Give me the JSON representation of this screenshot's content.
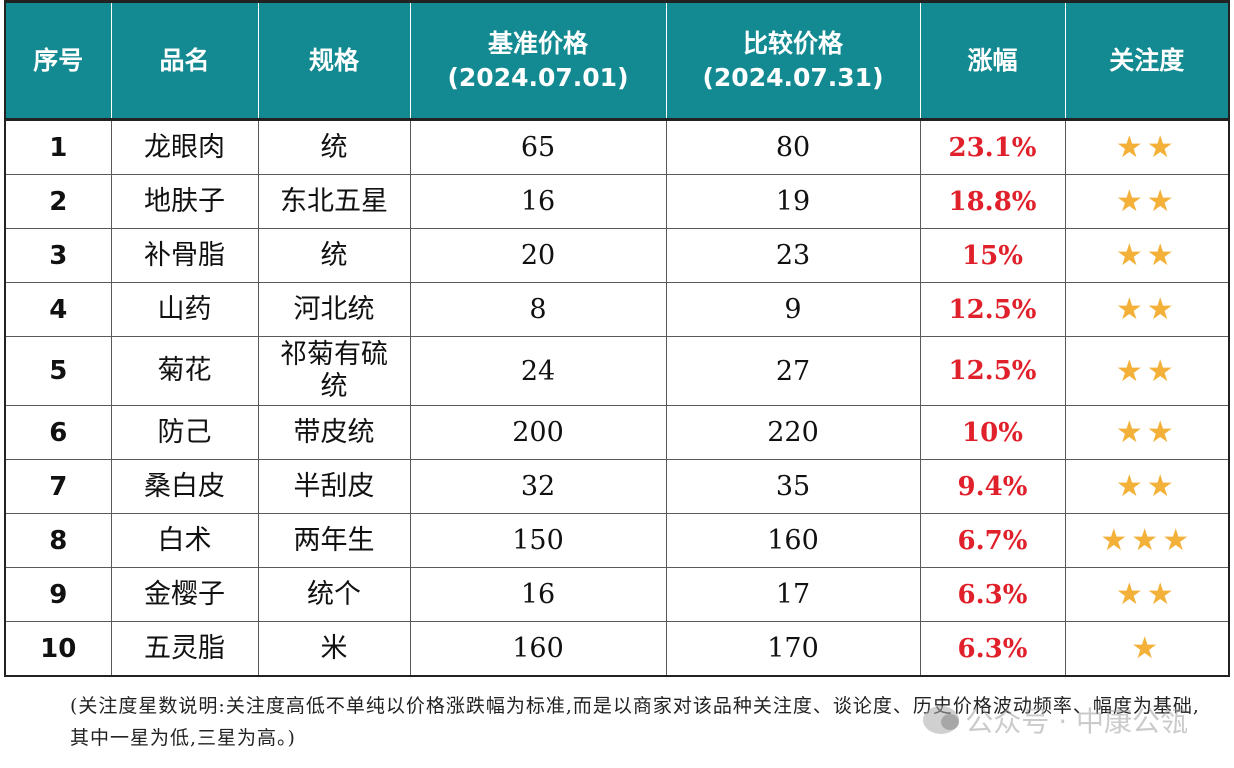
{
  "headers": {
    "index": "序号",
    "name": "品名",
    "spec": "规格",
    "base_price_line1": "基准价格",
    "base_price_line2": "(2024.07.01)",
    "compare_price_line1": "比较价格",
    "compare_price_line2": "(2024.07.31)",
    "rise": "涨幅",
    "attention": "关注度"
  },
  "rows": [
    {
      "index": "1",
      "name": "龙眼肉",
      "spec": "统",
      "base": "65",
      "compare": "80",
      "rise": "23.1%",
      "stars": "★★",
      "star_count": 2
    },
    {
      "index": "2",
      "name": "地肤子",
      "spec": "东北五星",
      "base": "16",
      "compare": "19",
      "rise": "18.8%",
      "stars": "★★",
      "star_count": 2
    },
    {
      "index": "3",
      "name": "补骨脂",
      "spec": "统",
      "base": "20",
      "compare": "23",
      "rise": "15%",
      "stars": "★★",
      "star_count": 2
    },
    {
      "index": "4",
      "name": "山药",
      "spec": "河北统",
      "base": "8",
      "compare": "9",
      "rise": "12.5%",
      "stars": "★★",
      "star_count": 2
    },
    {
      "index": "5",
      "name": "菊花",
      "spec": "祁菊有硫统",
      "base": "24",
      "compare": "27",
      "rise": "12.5%",
      "stars": "★★",
      "star_count": 2
    },
    {
      "index": "6",
      "name": "防己",
      "spec": "带皮统",
      "base": "200",
      "compare": "220",
      "rise": "10%",
      "stars": "★★",
      "star_count": 2
    },
    {
      "index": "7",
      "name": "桑白皮",
      "spec": "半刮皮",
      "base": "32",
      "compare": "35",
      "rise": "9.4%",
      "stars": "★★",
      "star_count": 2
    },
    {
      "index": "8",
      "name": "白术",
      "spec": "两年生",
      "base": "150",
      "compare": "160",
      "rise": "6.7%",
      "stars": "★★★",
      "star_count": 3
    },
    {
      "index": "9",
      "name": "金樱子",
      "spec": "统个",
      "base": "16",
      "compare": "17",
      "rise": "6.3%",
      "stars": "★★",
      "star_count": 2
    },
    {
      "index": "10",
      "name": "五灵脂",
      "spec": "米",
      "base": "160",
      "compare": "170",
      "rise": "6.3%",
      "stars": "★",
      "star_count": 1
    }
  ],
  "note": "(关注度星数说明:关注度高低不单纯以价格涨跌幅为标准,而是以商家对该品种关注度、谈论度、历史价格波动频率、幅度为基础,其中一星为低,三星为高。)",
  "watermark": "公众号 · 中康公瓴",
  "colors": {
    "header_bg": "#138a91",
    "rise_text": "#e0202a",
    "star": "#f3b13a"
  }
}
